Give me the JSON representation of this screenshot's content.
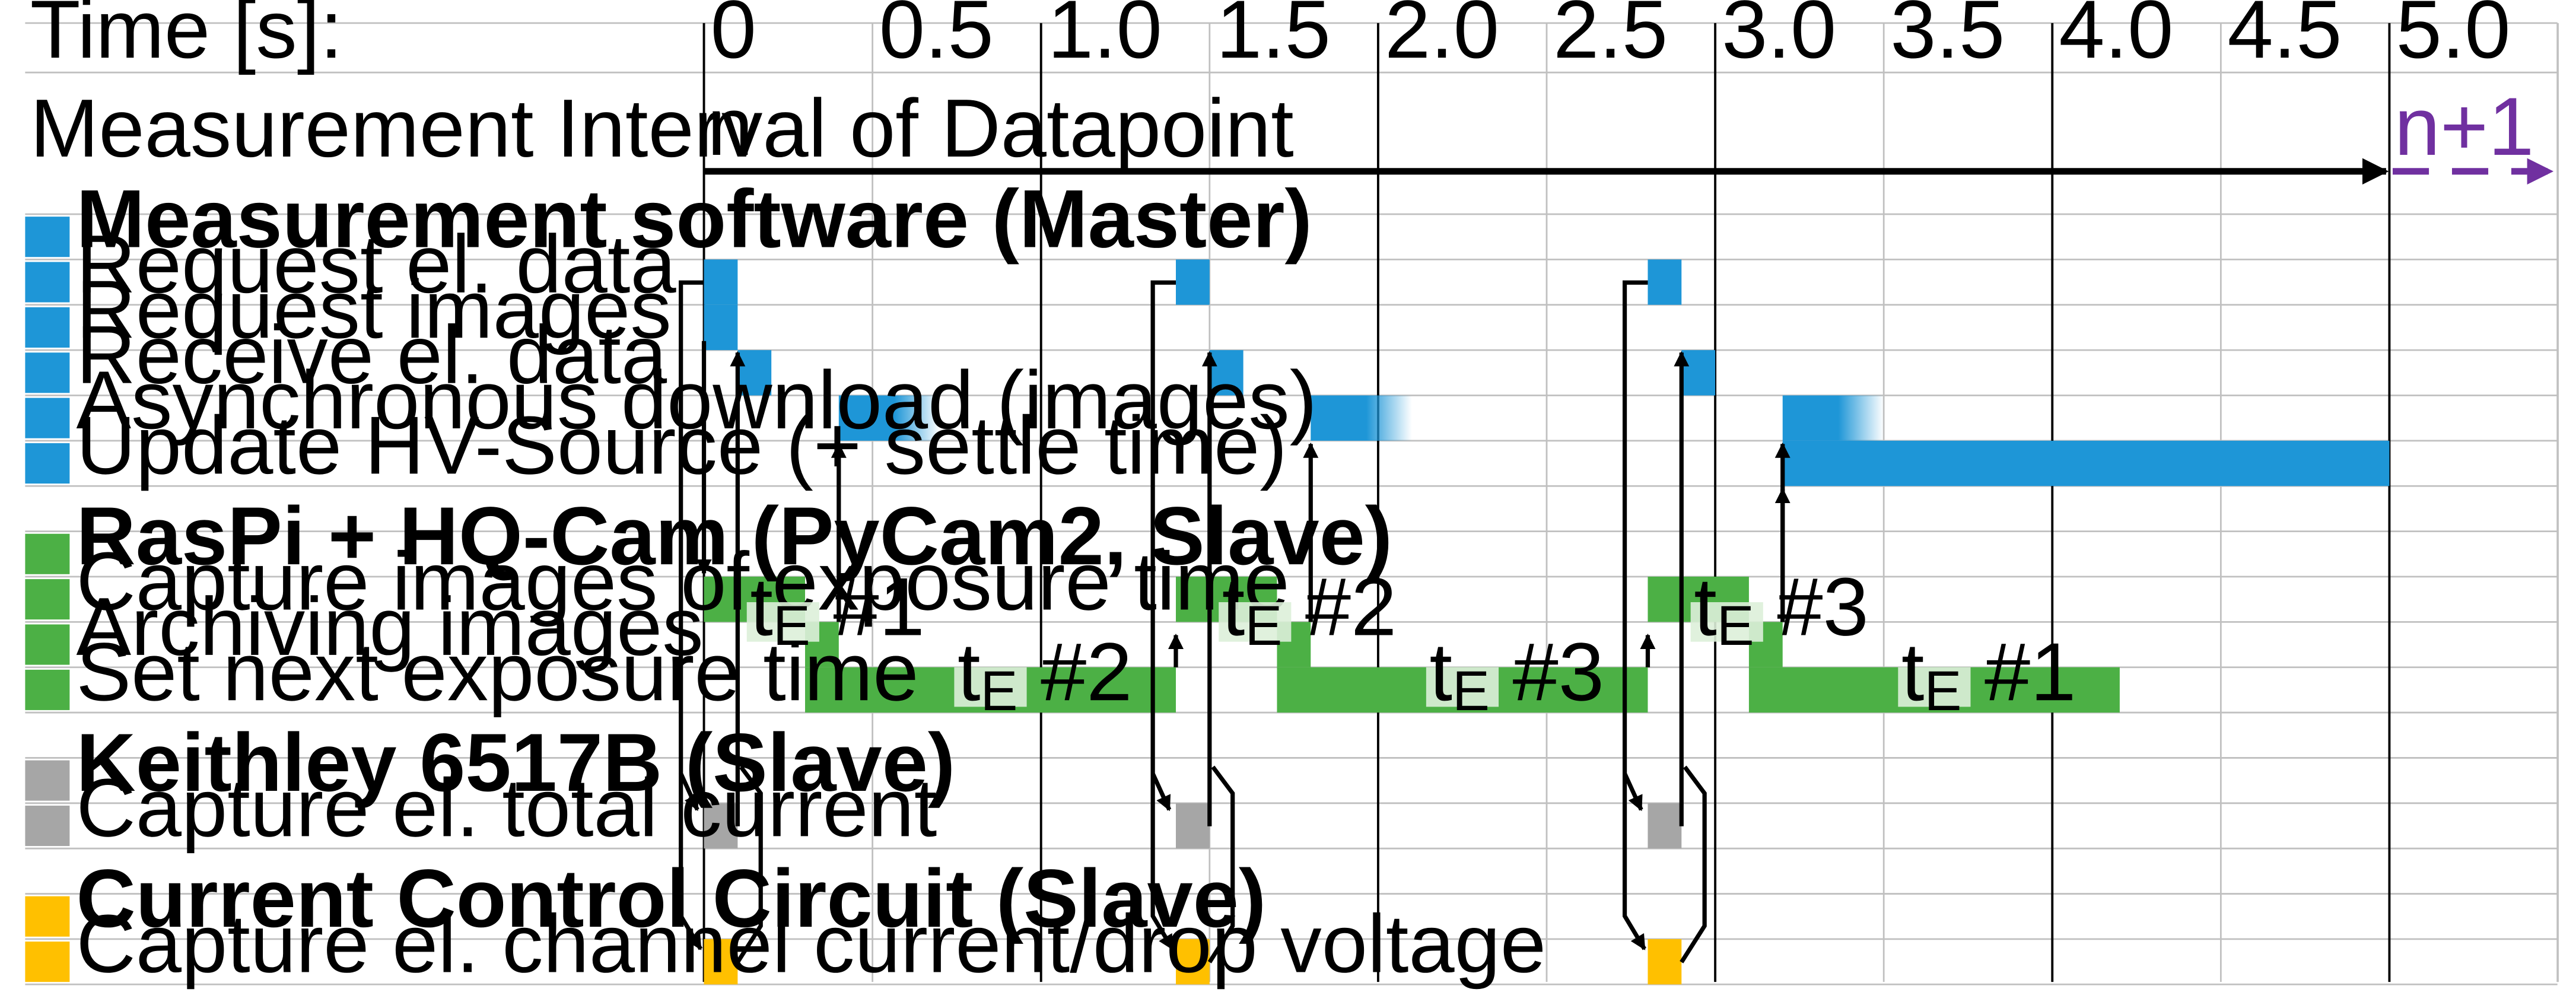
{
  "time_label": "Time [s]:",
  "interval_label": "Measurement Interval of Datapoint",
  "interval_start": "n",
  "interval_next": "n+1",
  "ticks": [
    "0",
    "0.5",
    "1.0",
    "1.5",
    "2.0",
    "2.5",
    "3.0",
    "3.5",
    "4.0",
    "4.5",
    "5.0"
  ],
  "groups": [
    {
      "title": "Measurement software (Master)",
      "color": "#1E96D7",
      "rows": [
        "Request el. data",
        "Request images",
        "Receive el. data",
        "Asynchronous download (images)",
        "Update HV-Source (+ settle time)"
      ]
    },
    {
      "title": "RasPi + HQ-Cam (PyCam2, Slave)",
      "color": "#4CB045",
      "rows": [
        "Capture images of exposure time",
        "Archiving images",
        "Set next exposure time"
      ]
    },
    {
      "title": "Keithley 6517B (Slave)",
      "color": "#A6A6A6",
      "rows": [
        "Capture el. total current"
      ]
    },
    {
      "title": "Current Control Circuit (Slave)",
      "color": "#FFC000",
      "rows": [
        "Capture el. channel current/drop voltage"
      ]
    }
  ],
  "cycles": [
    {
      "start_s": 0.0,
      "capture_label_id": "#1",
      "next_label_id": "#2"
    },
    {
      "start_s": 1.4,
      "capture_label_id": "#2",
      "next_label_id": "#3"
    },
    {
      "start_s": 2.8,
      "capture_label_id": "#3",
      "next_label_id": "#1"
    }
  ],
  "exposure_symbol": "t",
  "exposure_subscript": "E",
  "hv_update": {
    "start_s": 3.2,
    "end_s": 5.0
  },
  "colors": {
    "master": "#1E96D7",
    "camera": "#4CB045",
    "keithley": "#A6A6A6",
    "circuit": "#FFC000",
    "next_interval": "#7030A0",
    "grid": "#C0C0C0",
    "badge_bg": "#DDEFD9"
  }
}
